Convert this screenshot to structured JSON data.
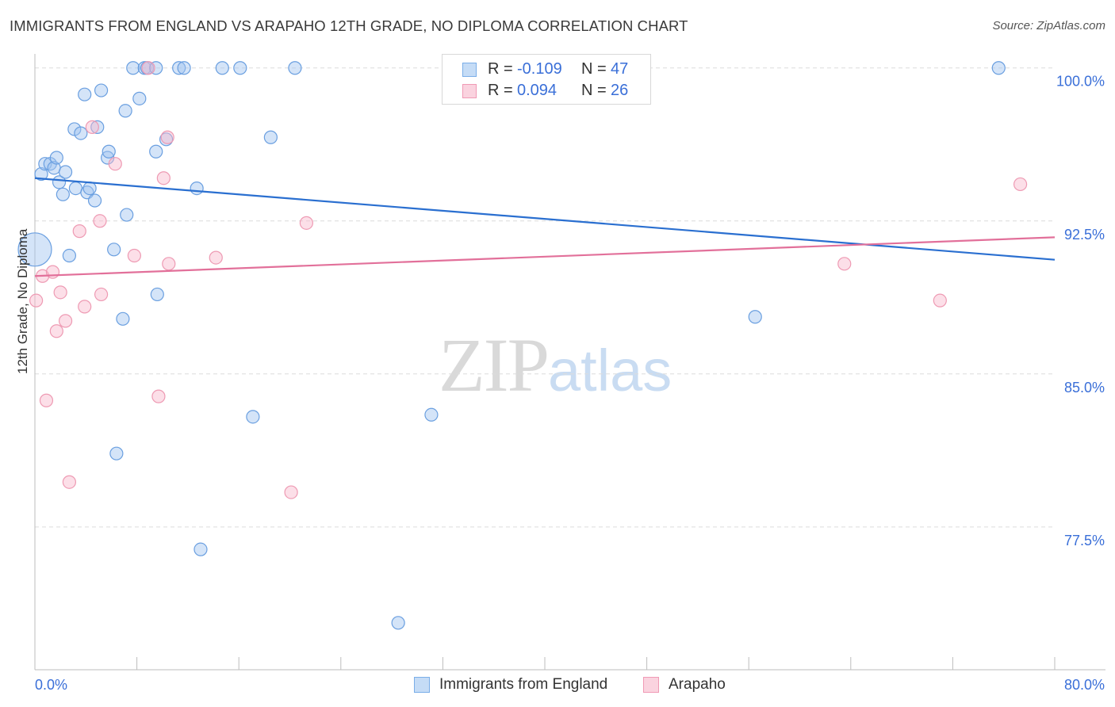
{
  "title": "IMMIGRANTS FROM ENGLAND VS ARAPAHO 12TH GRADE, NO DIPLOMA CORRELATION CHART",
  "source": "Source: ZipAtlas.com",
  "watermark": {
    "zip": "ZIP",
    "atlas": "atlas"
  },
  "legend_top": {
    "rows": [
      {
        "r_label": "R =",
        "r_value": "-0.109",
        "n_label": "N =",
        "n_value": "47",
        "color": "#7aaee8",
        "fill": "#c5dcf6"
      },
      {
        "r_label": "R =",
        "r_value": "0.094",
        "n_label": "N =",
        "n_value": "26",
        "color": "#f09ab5",
        "fill": "#fad3df"
      }
    ]
  },
  "colors": {
    "blue_point_fill": "rgba(160,195,240,0.45)",
    "blue_point_stroke": "#6a9fe0",
    "pink_point_fill": "rgba(248,185,205,0.45)",
    "pink_point_stroke": "#ee9ab3",
    "blue_line": "#2a6fd0",
    "pink_line": "#e2709a",
    "grid": "#dcdcdc",
    "tick_text": "#3a6fd8"
  },
  "chart_data": {
    "type": "scatter",
    "title": "IMMIGRANTS FROM ENGLAND VS ARAPAHO 12TH GRADE, NO DIPLOMA CORRELATION CHART",
    "xlabel": "",
    "ylabel": "12th Grade, No Diploma",
    "xlim": [
      0,
      80
    ],
    "ylim": [
      70.5,
      101
    ],
    "x_tick_labels": [
      "0.0%",
      "80.0%"
    ],
    "y_ticks": [
      100.0,
      92.5,
      85.0,
      77.5
    ],
    "y_tick_labels": [
      "100.0%",
      "92.5%",
      "85.0%",
      "77.5%"
    ],
    "legend_position": "bottom",
    "grid": true,
    "series": [
      {
        "name": "Immigrants from England",
        "trend": {
          "x0": 0,
          "y0": 94.6,
          "x1": 80,
          "y1": 90.6
        },
        "points": [
          {
            "x": 0.0,
            "y": 91.1,
            "big": true
          },
          {
            "x": 0.5,
            "y": 94.8
          },
          {
            "x": 0.8,
            "y": 95.3
          },
          {
            "x": 1.2,
            "y": 95.3
          },
          {
            "x": 1.5,
            "y": 95.1
          },
          {
            "x": 1.7,
            "y": 95.6
          },
          {
            "x": 1.9,
            "y": 94.4
          },
          {
            "x": 2.2,
            "y": 93.8
          },
          {
            "x": 2.4,
            "y": 94.9
          },
          {
            "x": 2.7,
            "y": 90.8
          },
          {
            "x": 3.1,
            "y": 97.0
          },
          {
            "x": 3.2,
            "y": 94.1
          },
          {
            "x": 3.6,
            "y": 96.8
          },
          {
            "x": 3.9,
            "y": 98.7
          },
          {
            "x": 4.1,
            "y": 93.9
          },
          {
            "x": 4.3,
            "y": 94.1
          },
          {
            "x": 4.7,
            "y": 93.5
          },
          {
            "x": 4.9,
            "y": 97.1
          },
          {
            "x": 5.2,
            "y": 98.9
          },
          {
            "x": 5.7,
            "y": 95.6
          },
          {
            "x": 5.8,
            "y": 95.9
          },
          {
            "x": 6.2,
            "y": 91.1
          },
          {
            "x": 6.4,
            "y": 81.1
          },
          {
            "x": 6.9,
            "y": 87.7
          },
          {
            "x": 7.1,
            "y": 97.9
          },
          {
            "x": 7.2,
            "y": 92.8
          },
          {
            "x": 7.7,
            "y": 100.0
          },
          {
            "x": 8.2,
            "y": 98.5
          },
          {
            "x": 8.6,
            "y": 100.0
          },
          {
            "x": 8.8,
            "y": 100.0
          },
          {
            "x": 9.5,
            "y": 100.0
          },
          {
            "x": 9.5,
            "y": 95.9
          },
          {
            "x": 9.6,
            "y": 88.9
          },
          {
            "x": 10.3,
            "y": 96.5
          },
          {
            "x": 11.3,
            "y": 100.0
          },
          {
            "x": 11.7,
            "y": 100.0
          },
          {
            "x": 12.7,
            "y": 94.1
          },
          {
            "x": 13.0,
            "y": 76.4
          },
          {
            "x": 14.7,
            "y": 100.0
          },
          {
            "x": 16.1,
            "y": 100.0
          },
          {
            "x": 17.1,
            "y": 82.9
          },
          {
            "x": 18.5,
            "y": 96.6
          },
          {
            "x": 20.4,
            "y": 100.0
          },
          {
            "x": 28.5,
            "y": 72.8
          },
          {
            "x": 31.1,
            "y": 83.0
          },
          {
            "x": 56.5,
            "y": 87.8
          },
          {
            "x": 75.6,
            "y": 100.0
          }
        ]
      },
      {
        "name": "Arapaho",
        "trend": {
          "x0": 0,
          "y0": 89.8,
          "x1": 80,
          "y1": 91.7
        },
        "points": [
          {
            "x": 0.1,
            "y": 88.6
          },
          {
            "x": 0.6,
            "y": 89.8
          },
          {
            "x": 0.9,
            "y": 83.7
          },
          {
            "x": 1.4,
            "y": 90.0
          },
          {
            "x": 1.7,
            "y": 87.1
          },
          {
            "x": 2.0,
            "y": 89.0
          },
          {
            "x": 2.4,
            "y": 87.6
          },
          {
            "x": 2.7,
            "y": 79.7
          },
          {
            "x": 3.5,
            "y": 92.0
          },
          {
            "x": 3.9,
            "y": 88.3
          },
          {
            "x": 4.5,
            "y": 97.1
          },
          {
            "x": 5.1,
            "y": 92.5
          },
          {
            "x": 5.2,
            "y": 88.9
          },
          {
            "x": 6.3,
            "y": 95.3
          },
          {
            "x": 7.8,
            "y": 90.8
          },
          {
            "x": 8.9,
            "y": 100.0
          },
          {
            "x": 9.7,
            "y": 83.9
          },
          {
            "x": 10.1,
            "y": 94.6
          },
          {
            "x": 10.4,
            "y": 96.6
          },
          {
            "x": 10.5,
            "y": 90.4
          },
          {
            "x": 14.2,
            "y": 90.7
          },
          {
            "x": 20.1,
            "y": 79.2
          },
          {
            "x": 21.3,
            "y": 92.4
          },
          {
            "x": 63.5,
            "y": 90.4
          },
          {
            "x": 71.0,
            "y": 88.6
          },
          {
            "x": 77.3,
            "y": 94.3
          }
        ]
      }
    ]
  },
  "legend_bottom": {
    "items": [
      {
        "label": "Immigrants from England",
        "color": "#7aaee8",
        "fill": "#c5dcf6"
      },
      {
        "label": "Arapaho",
        "color": "#f09ab5",
        "fill": "#fad3df"
      }
    ]
  }
}
